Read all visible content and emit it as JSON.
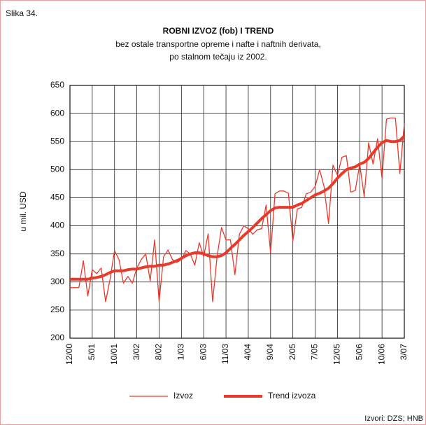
{
  "chart_data": {
    "type": "line",
    "figure_label": "Slika 34.",
    "title": "ROBNI IZVOZ (fob) I TREND",
    "subtitle": [
      "bez ostale transportne opreme i nafte i naftnih derivata,",
      "po stalnom tečaju iz 2002."
    ],
    "y_label": "u mil. USD",
    "source": "Izvori: DZS; HNB",
    "categories": [
      "12/00",
      null,
      null,
      null,
      null,
      "5/01",
      null,
      null,
      null,
      null,
      "10/01",
      null,
      null,
      null,
      null,
      "3/02",
      null,
      null,
      null,
      null,
      "8/02",
      null,
      null,
      null,
      null,
      "1/03",
      null,
      null,
      null,
      null,
      "6/03",
      null,
      null,
      null,
      null,
      "11/03",
      null,
      null,
      null,
      null,
      "4/04",
      null,
      null,
      null,
      null,
      "9/04",
      null,
      null,
      null,
      null,
      "2/05",
      null,
      null,
      null,
      null,
      "7/05",
      null,
      null,
      null,
      null,
      "12/05",
      null,
      null,
      null,
      null,
      "5/06",
      null,
      null,
      null,
      null,
      "10/06",
      null,
      null,
      null,
      null,
      "3/07"
    ],
    "series": [
      {
        "name": "Izvoz",
        "color": "#e8392b",
        "width": 1.3,
        "values": [
          290,
          290,
          290,
          338,
          275,
          322,
          315,
          325,
          265,
          305,
          356,
          340,
          298,
          310,
          298,
          325,
          340,
          350,
          302,
          375,
          265,
          345,
          357,
          340,
          335,
          340,
          356,
          350,
          330,
          370,
          345,
          386,
          265,
          345,
          397,
          375,
          375,
          313,
          385,
          400,
          395,
          385,
          393,
          395,
          437,
          352,
          457,
          462,
          462,
          458,
          373,
          430,
          433,
          457,
          460,
          470,
          500,
          470,
          404,
          508,
          490,
          522,
          525,
          460,
          463,
          510,
          452,
          548,
          510,
          555,
          485,
          590,
          592,
          592,
          493,
          582
        ]
      },
      {
        "name": "Trend izvoza",
        "color": "#e8392b",
        "width": 4,
        "values": [
          305,
          305,
          305,
          305,
          305,
          307,
          308,
          310,
          313,
          317,
          320,
          320,
          320,
          322,
          323,
          323,
          325,
          327,
          328,
          328,
          330,
          330,
          332,
          335,
          338,
          342,
          347,
          350,
          352,
          352,
          350,
          347,
          345,
          345,
          347,
          352,
          360,
          367,
          375,
          383,
          390,
          397,
          405,
          413,
          420,
          427,
          432,
          433,
          433,
          433,
          433,
          437,
          440,
          445,
          450,
          455,
          458,
          462,
          467,
          475,
          485,
          493,
          500,
          503,
          505,
          510,
          513,
          520,
          530,
          540,
          548,
          552,
          550,
          550,
          552,
          560
        ]
      }
    ],
    "ylim": [
      200,
      650
    ],
    "yticks": [
      200,
      250,
      300,
      350,
      400,
      450,
      500,
      550,
      600,
      650
    ],
    "grid": true
  }
}
